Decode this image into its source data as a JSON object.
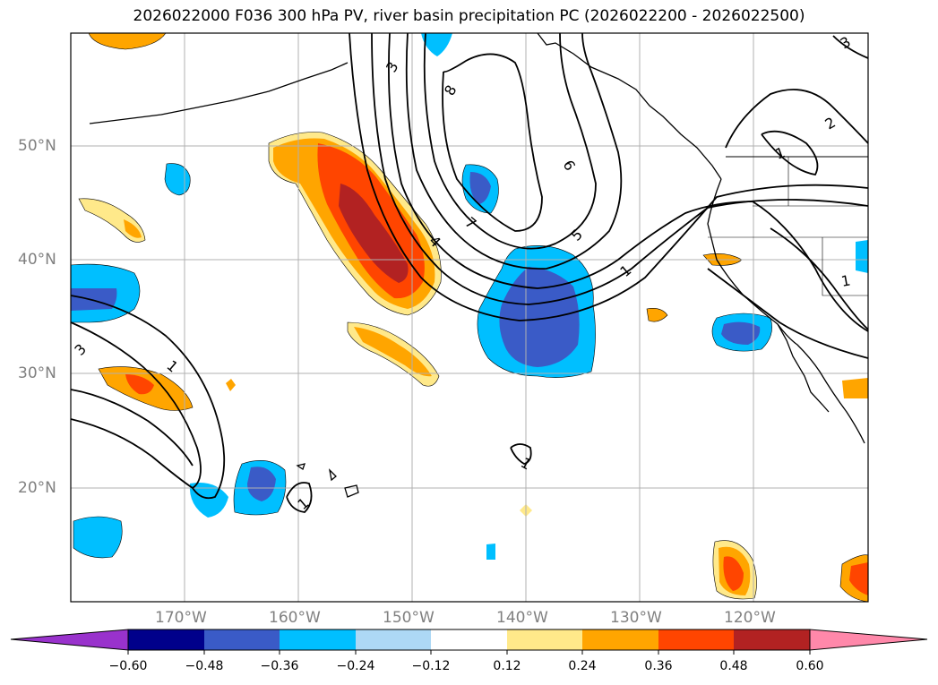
{
  "title": "2026022000 F036 300 hPa PV, river basin precipitation PC (2026022200 - 2026022500)",
  "map": {
    "lon_range": [
      -180,
      -110
    ],
    "lat_range": [
      10,
      60
    ],
    "lat_labels": [
      "50°N",
      "40°N",
      "30°N",
      "20°N"
    ],
    "lon_labels": [
      "170°W",
      "160°W",
      "150°W",
      "140°W",
      "130°W",
      "120°W"
    ],
    "contour_labels": [
      "3",
      "8",
      "6",
      "7",
      "5",
      "4",
      "1",
      "2",
      "3",
      "1",
      "1",
      "1",
      "1",
      "1",
      "3"
    ]
  },
  "colorbar": {
    "ticks": [
      "−0.60",
      "−0.48",
      "−0.36",
      "−0.24",
      "−0.12",
      "0.12",
      "0.24",
      "0.36",
      "0.48",
      "0.60"
    ],
    "colors": [
      "#9932cc",
      "#00008b",
      "#3a5bc7",
      "#00bfff",
      "#add8f5",
      "#ffffff",
      "#ffe98a",
      "#ffa500",
      "#ff4500",
      "#b22222",
      "#ff88aa"
    ]
  },
  "colors": {
    "coast": "#000000",
    "grid": "#b0b0b0",
    "label": "#808080"
  }
}
